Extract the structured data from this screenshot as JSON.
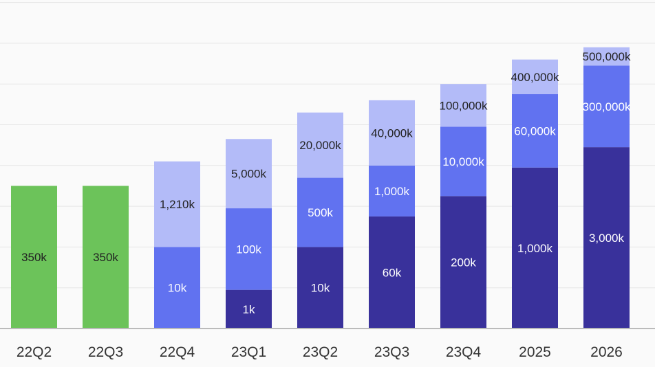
{
  "colors": {
    "green": "#6cc35a",
    "dark": "#39319b",
    "mid": "#6172f0",
    "light": "#b3bbf8",
    "grid": "#e6e6e6",
    "axis": "#bbbbbb",
    "background": "#fafafa"
  },
  "chart_data": {
    "type": "bar",
    "stacked": true,
    "title": "",
    "xlabel": "",
    "ylabel": "",
    "grid": true,
    "legend": "none",
    "categories": [
      "22Q2",
      "22Q3",
      "22Q4",
      "23Q1",
      "23Q2",
      "23Q3",
      "23Q4",
      "2025",
      "2026"
    ],
    "bars": [
      {
        "category": "22Q2",
        "segments": [
          {
            "tier": "green",
            "height": 3.5,
            "label": "350k",
            "label_color": "#222222"
          }
        ]
      },
      {
        "category": "22Q3",
        "segments": [
          {
            "tier": "green",
            "height": 3.5,
            "label": "350k",
            "label_color": "#222222"
          }
        ]
      },
      {
        "category": "22Q4",
        "segments": [
          {
            "tier": "mid",
            "height": 2,
            "label": "10k",
            "label_color": "#ffffff"
          },
          {
            "tier": "light",
            "height": 2.1,
            "label": "1,210k",
            "label_color": "#222222"
          }
        ]
      },
      {
        "category": "23Q1",
        "segments": [
          {
            "tier": "dark",
            "height": 0.95,
            "label": "1k",
            "label_color": "#ffffff"
          },
          {
            "tier": "mid",
            "height": 2,
            "label": "100k",
            "label_color": "#ffffff"
          },
          {
            "tier": "light",
            "height": 1.7,
            "label": "5,000k",
            "label_color": "#222222"
          }
        ]
      },
      {
        "category": "23Q2",
        "segments": [
          {
            "tier": "dark",
            "height": 2,
            "label": "10k",
            "label_color": "#ffffff"
          },
          {
            "tier": "mid",
            "height": 1.7,
            "label": "500k",
            "label_color": "#ffffff"
          },
          {
            "tier": "light",
            "height": 1.6,
            "label": "20,000k",
            "label_color": "#222222"
          }
        ]
      },
      {
        "category": "23Q3",
        "segments": [
          {
            "tier": "dark",
            "height": 2.75,
            "label": "60k",
            "label_color": "#ffffff"
          },
          {
            "tier": "mid",
            "height": 1.25,
            "label": "1,000k",
            "label_color": "#ffffff"
          },
          {
            "tier": "light",
            "height": 1.6,
            "label": "40,000k",
            "label_color": "#222222"
          }
        ]
      },
      {
        "category": "23Q4",
        "segments": [
          {
            "tier": "dark",
            "height": 3.25,
            "label": "200k",
            "label_color": "#ffffff"
          },
          {
            "tier": "mid",
            "height": 1.7,
            "label": "10,000k",
            "label_color": "#ffffff"
          },
          {
            "tier": "light",
            "height": 1.05,
            "label": "100,000k",
            "label_color": "#222222"
          }
        ]
      },
      {
        "category": "2025",
        "segments": [
          {
            "tier": "dark",
            "height": 3.95,
            "label": "1,000k",
            "label_color": "#ffffff"
          },
          {
            "tier": "mid",
            "height": 1.8,
            "label": "60,000k",
            "label_color": "#ffffff"
          },
          {
            "tier": "light",
            "height": 0.85,
            "label": "400,000k",
            "label_color": "#222222"
          }
        ]
      },
      {
        "category": "2026",
        "segments": [
          {
            "tier": "dark",
            "height": 4.45,
            "label": "3,000k",
            "label_color": "#ffffff"
          },
          {
            "tier": "mid",
            "height": 2,
            "label": "300,000k",
            "label_color": "#ffffff"
          },
          {
            "tier": "light",
            "height": 0.45,
            "label": "500,000k",
            "label_color": "#222222"
          }
        ]
      }
    ],
    "ylim": [
      0,
      8
    ]
  }
}
